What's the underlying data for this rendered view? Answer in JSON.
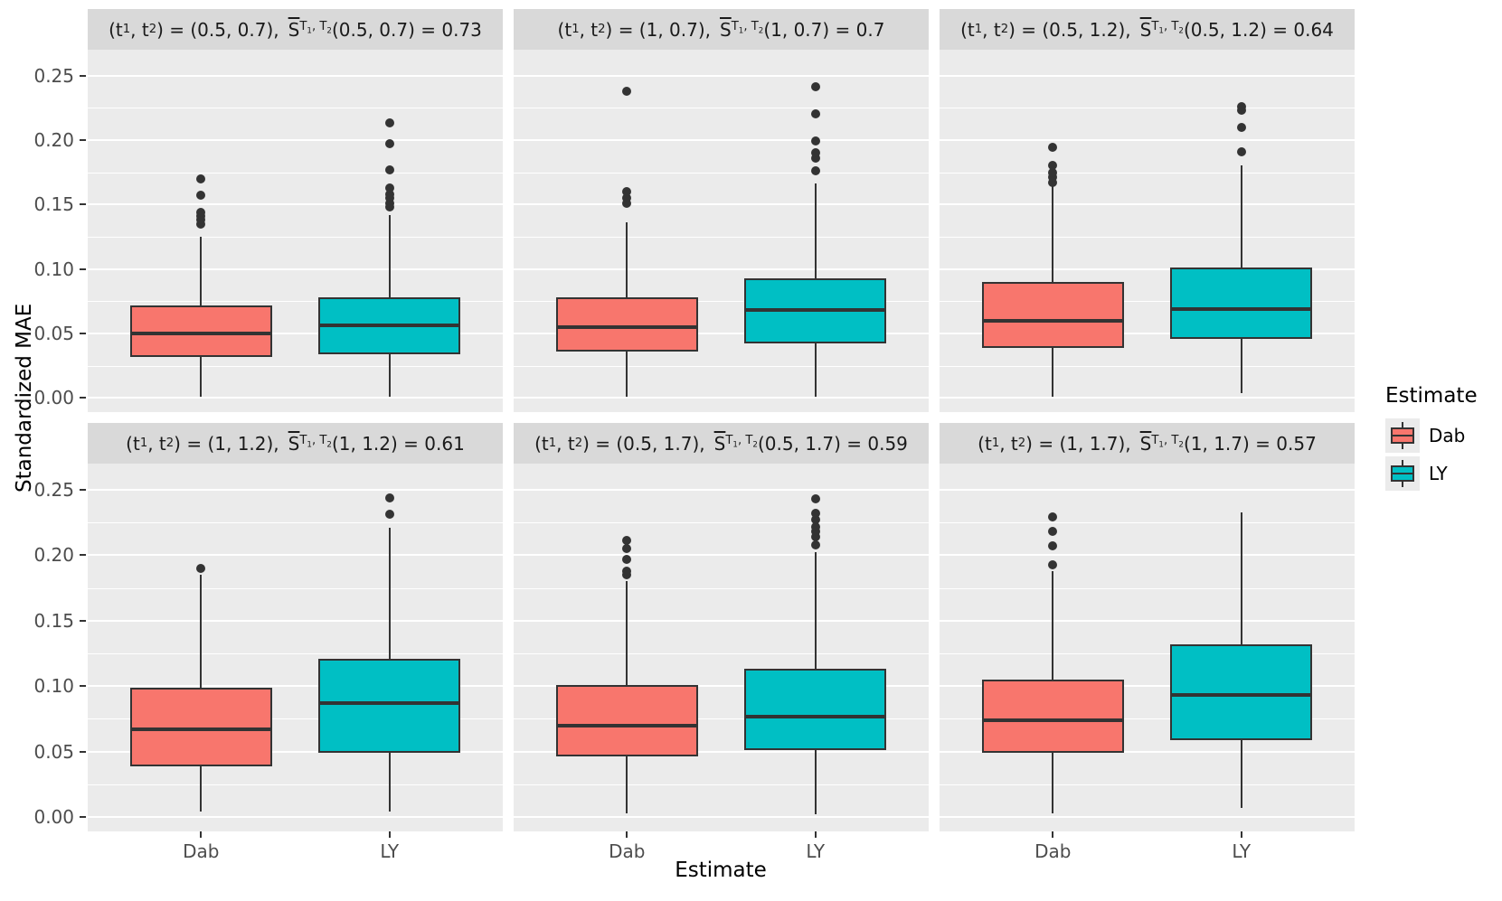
{
  "chart_data": {
    "type": "boxplot",
    "title": "",
    "xlabel": "Estimate",
    "ylabel": "Standardized MAE",
    "categories": [
      "Dab",
      "LY"
    ],
    "ylim": [
      -0.011,
      0.27
    ],
    "grid": "on",
    "yticks": [
      {
        "label": "0.00",
        "v": 0.0
      },
      {
        "label": "0.05",
        "v": 0.05
      },
      {
        "label": "0.10",
        "v": 0.1
      },
      {
        "label": "0.15",
        "v": 0.15
      },
      {
        "label": "0.20",
        "v": 0.2
      },
      {
        "label": "0.25",
        "v": 0.25
      }
    ],
    "minor_gridlines": [
      0.025,
      0.075,
      0.125,
      0.175,
      0.225
    ],
    "strip_template": {
      "open": "(",
      "t": "t",
      "one": "1",
      "two": "2",
      "comma": ",",
      "close": ")",
      "equals": " = ",
      "S": "S",
      "T": "T"
    },
    "facets": [
      {
        "t_pair": "(0.5, 0.7)",
        "score": "0.73",
        "series": [
          {
            "name": "Dab",
            "whislo": 0.001,
            "q1": 0.032,
            "med": 0.05,
            "q3": 0.072,
            "whishi": 0.125,
            "outliers": [
              0.135,
              0.138,
              0.141,
              0.144,
              0.157,
              0.17
            ]
          },
          {
            "name": "LY",
            "whislo": 0.001,
            "q1": 0.034,
            "med": 0.056,
            "q3": 0.078,
            "whishi": 0.142,
            "outliers": [
              0.148,
              0.151,
              0.155,
              0.158,
              0.163,
              0.177,
              0.197,
              0.213
            ]
          }
        ]
      },
      {
        "t_pair": "(1, 0.7)",
        "score": "0.7",
        "series": [
          {
            "name": "Dab",
            "whislo": 0.001,
            "q1": 0.036,
            "med": 0.055,
            "q3": 0.078,
            "whishi": 0.136,
            "outliers": [
              0.151,
              0.155,
              0.16,
              0.238
            ]
          },
          {
            "name": "LY",
            "whislo": 0.001,
            "q1": 0.042,
            "med": 0.068,
            "q3": 0.093,
            "whishi": 0.166,
            "outliers": [
              0.176,
              0.186,
              0.19,
              0.199,
              0.22,
              0.241
            ]
          }
        ]
      },
      {
        "t_pair": "(0.5, 1.2)",
        "score": "0.64",
        "series": [
          {
            "name": "Dab",
            "whislo": 0.001,
            "q1": 0.039,
            "med": 0.06,
            "q3": 0.09,
            "whishi": 0.164,
            "outliers": [
              0.167,
              0.171,
              0.175,
              0.18,
              0.194
            ]
          },
          {
            "name": "LY",
            "whislo": 0.004,
            "q1": 0.046,
            "med": 0.069,
            "q3": 0.101,
            "whishi": 0.18,
            "outliers": [
              0.191,
              0.21,
              0.223,
              0.226
            ]
          }
        ]
      },
      {
        "t_pair": "(1, 1.2)",
        "score": "0.61",
        "series": [
          {
            "name": "Dab",
            "whislo": 0.004,
            "q1": 0.039,
            "med": 0.067,
            "q3": 0.099,
            "whishi": 0.185,
            "outliers": [
              0.19
            ]
          },
          {
            "name": "LY",
            "whislo": 0.004,
            "q1": 0.049,
            "med": 0.087,
            "q3": 0.121,
            "whishi": 0.221,
            "outliers": [
              0.231,
              0.244
            ]
          }
        ]
      },
      {
        "t_pair": "(0.5, 1.7)",
        "score": "0.59",
        "series": [
          {
            "name": "Dab",
            "whislo": 0.003,
            "q1": 0.046,
            "med": 0.07,
            "q3": 0.101,
            "whishi": 0.18,
            "outliers": [
              0.185,
              0.188,
              0.197,
              0.205,
              0.211
            ]
          },
          {
            "name": "LY",
            "whislo": 0.002,
            "q1": 0.051,
            "med": 0.077,
            "q3": 0.113,
            "whishi": 0.202,
            "outliers": [
              0.208,
              0.214,
              0.218,
              0.222,
              0.227,
              0.232,
              0.243
            ]
          }
        ]
      },
      {
        "t_pair": "(1, 1.7)",
        "score": "0.57",
        "series": [
          {
            "name": "Dab",
            "whislo": 0.003,
            "q1": 0.049,
            "med": 0.074,
            "q3": 0.105,
            "whishi": 0.188,
            "outliers": [
              0.193,
              0.207,
              0.218,
              0.229
            ]
          },
          {
            "name": "LY",
            "whislo": 0.007,
            "q1": 0.059,
            "med": 0.093,
            "q3": 0.132,
            "whishi": 0.233,
            "outliers": []
          }
        ]
      }
    ],
    "legend": {
      "title": "Estimate",
      "entries": [
        {
          "label": "Dab",
          "color": "#F8766D"
        },
        {
          "label": "LY",
          "color": "#00BFC4"
        }
      ]
    },
    "colors": {
      "dab_fill": "#F8766D",
      "ly_fill": "#00BFC4",
      "stroke": "#333333",
      "panel_bg": "#EBEBEB",
      "strip_bg": "#D9D9D9",
      "gridline": "#FFFFFF",
      "axis_text": "#4D4D4D"
    }
  }
}
